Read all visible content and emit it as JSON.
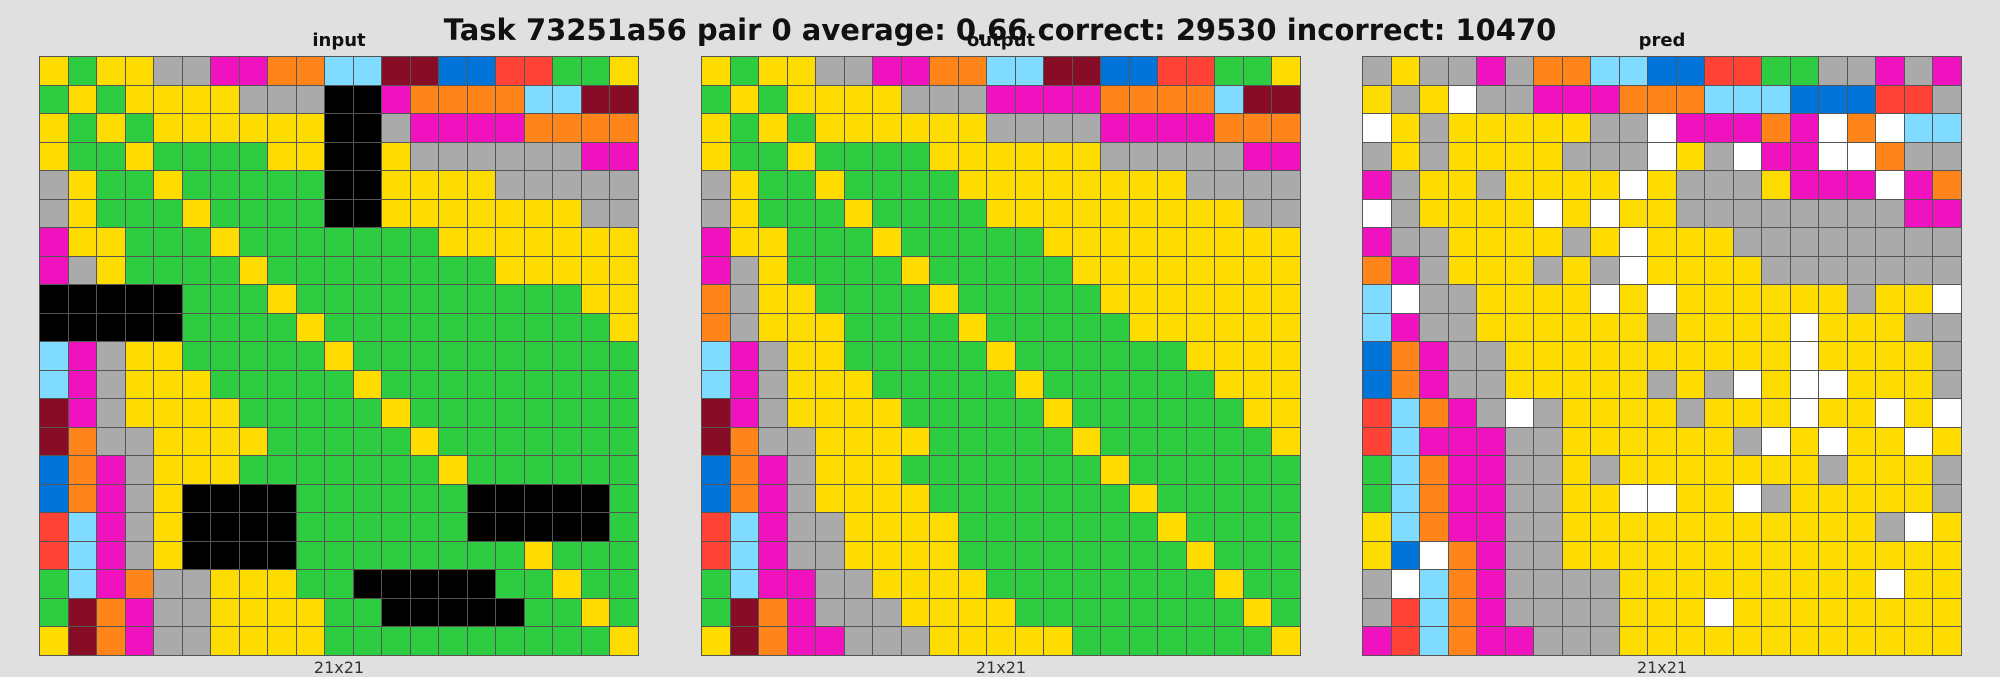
{
  "title": "Task 73251a56 pair 0 average: 0.66 correct: 29530 incorrect: 10470",
  "palette": {
    "0": "#000000",
    "1": "#0074d9",
    "2": "#ff4136",
    "3": "#2ecc40",
    "4": "#ffdc00",
    "5": "#aaaaaa",
    "6": "#f012be",
    "7": "#ff851b",
    "8": "#7fdbff",
    "9": "#870c25",
    "w": "#ffffff"
  },
  "panels": [
    {
      "label": "input",
      "dims": "21x21",
      "rows": [
        "434455667788991122334",
        "343444455500677778899",
        "434344444400566667777",
        "433433334400455555566",
        "543343333300444455555",
        "543334333300444444455",
        "644333433333334444444",
        "654333343333333344444",
        "000003334333333333344",
        "000003333433333333334",
        "865443333343333333333",
        "865444333334333333333",
        "965444433333433333333",
        "975544443333343333333",
        "176544433333334333333",
        "176540000333333000003",
        "286540000333333000003",
        "286540000333333334333",
        "386755444330000033433",
        "397655444433000003343",
        "497655444433333333334"
      ]
    },
    {
      "label": "output",
      "dims": "21x21",
      "rows": [
        "434455667788991122334",
        "343444455566667777899",
        "434344444455556666777",
        "433433334444445555566",
        "543343333444444445555",
        "543334333344444444455",
        "644333433333444444444",
        "654333343333344444444",
        "754433334333334444444",
        "754443333433333444444",
        "865443333343333334444",
        "865444333334333333444",
        "965444433333433333344",
        "975544443333343333334",
        "176544433333334333333",
        "176544443333333433333",
        "286554444333333343333",
        "286554444333333334333",
        "386655444433333333433",
        "397655544443333333343",
        "497665554444433333334"
      ]
    },
    {
      "label": "pred",
      "dims": "21x21",
      "rows": [
        "545565778811223355656",
        "454w5566677788811122",
        "w454444455w66676w7w88",
        "5454444555w45w66ww7",
        "654454444w45554666w67",
        "w54444w4w4455555555666",
        "655444454w4445555555",
        "765444545w4444555555",
        "8w554444w4w444444544w",
        "865544444454444w4445",
        "176554444444444w4444",
        "1765544444545w4ww444",
        "28765w544445444w44w4w",
        "28666554444445w4w44w4",
        "38766554544444445444",
        "387665544ww44w544444",
        "4876655444444444445w4",
        "41w7655444444444444444",
        "5w8765555444444444w44",
        "528765555444w444444444",
        "62876655544444444444445"
      ]
    }
  ]
}
